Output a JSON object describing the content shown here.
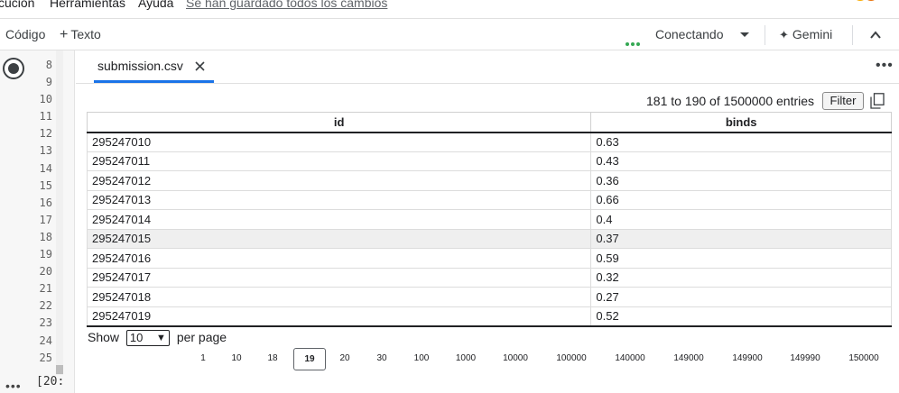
{
  "menu": {
    "items": [
      "cución",
      "Herramientas",
      "Ayuda"
    ],
    "saved_status": "Se han guardado todos los cambios"
  },
  "toolbar": {
    "code_label": "Código",
    "text_label": "Texto",
    "status_label": "Conectando",
    "gemini_label": "Gemini"
  },
  "gutter": {
    "line_numbers": [
      "8",
      "9",
      "10",
      "11",
      "12",
      "13",
      "14",
      "15",
      "16",
      "17",
      "18",
      "19",
      "20",
      "21",
      "22",
      "23",
      "24",
      "25"
    ],
    "output_prefix": "[20:"
  },
  "tab": {
    "title": "submission.csv"
  },
  "table": {
    "entries_text": "181 to 190 of 1500000 entries",
    "filter_label": "Filter",
    "columns": [
      "id",
      "binds"
    ],
    "rows": [
      [
        "295247010",
        "0.63"
      ],
      [
        "295247011",
        "0.43"
      ],
      [
        "295247012",
        "0.36"
      ],
      [
        "295247013",
        "0.66"
      ],
      [
        "295247014",
        "0.4"
      ],
      [
        "295247015",
        "0.37"
      ],
      [
        "295247016",
        "0.59"
      ],
      [
        "295247017",
        "0.32"
      ],
      [
        "295247018",
        "0.27"
      ],
      [
        "295247019",
        "0.52"
      ]
    ]
  },
  "pagination": {
    "show_label": "Show",
    "per_page_value": "10",
    "per_page_label": "per page",
    "pages": [
      "1",
      "10",
      "18",
      "19",
      "20",
      "30",
      "100",
      "1000",
      "10000",
      "100000",
      "140000",
      "149000",
      "149900",
      "149990",
      "150000"
    ],
    "current_page": "19"
  },
  "colors": {
    "accent_blue": "#1a73e8",
    "status_green": "#34a853",
    "row_highlight": "#efefef"
  },
  "icons": [
    "stop-run-icon",
    "plus-icon",
    "chevron-down-icon",
    "gemini-sparkle-icon",
    "chevron-up-icon",
    "close-icon",
    "more-horizontal-icon",
    "copy-icon"
  ]
}
